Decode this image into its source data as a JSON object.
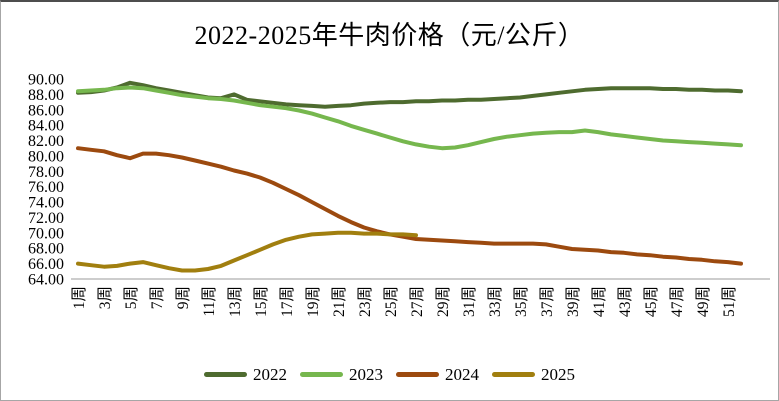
{
  "chart_data": {
    "type": "line",
    "title": "2022-2025年牛肉价格（元/公斤）",
    "xlabel": "",
    "ylabel": "",
    "unit": "元/公斤",
    "ylim": [
      64,
      90
    ],
    "ytick_step": 2,
    "grid": false,
    "legend_position": "bottom",
    "axis_color": "#c6c6c6",
    "text_color": "#000000",
    "weeks_total": 52,
    "y_ticks": [
      "90.00",
      "88.00",
      "86.00",
      "84.00",
      "82.00",
      "80.00",
      "78.00",
      "76.00",
      "74.00",
      "72.00",
      "70.00",
      "68.00",
      "66.00",
      "64.00"
    ],
    "x_tick_labels": [
      "1周",
      "3周",
      "5周",
      "7周",
      "9周",
      "11周",
      "13周",
      "15周",
      "17周",
      "19周",
      "21周",
      "23周",
      "25周",
      "27周",
      "29周",
      "31周",
      "33周",
      "35周",
      "37周",
      "39周",
      "41周",
      "43周",
      "45周",
      "47周",
      "49周",
      "51周"
    ],
    "series": [
      {
        "name": "2022",
        "color": "#4e6b2f",
        "values": [
          88.2,
          88.3,
          88.5,
          88.9,
          89.5,
          89.2,
          88.8,
          88.5,
          88.2,
          87.9,
          87.6,
          87.5,
          88.0,
          87.3,
          87.1,
          86.9,
          86.7,
          86.6,
          86.5,
          86.4,
          86.5,
          86.6,
          86.8,
          86.9,
          87.0,
          87.0,
          87.1,
          87.1,
          87.2,
          87.2,
          87.3,
          87.3,
          87.4,
          87.5,
          87.6,
          87.8,
          88.0,
          88.2,
          88.4,
          88.6,
          88.7,
          88.8,
          88.8,
          88.8,
          88.8,
          88.7,
          88.7,
          88.6,
          88.6,
          88.5,
          88.5,
          88.4
        ]
      },
      {
        "name": "2023",
        "color": "#76b74e",
        "values": [
          88.4,
          88.5,
          88.6,
          88.8,
          88.9,
          88.8,
          88.5,
          88.2,
          87.9,
          87.7,
          87.5,
          87.4,
          87.2,
          86.9,
          86.6,
          86.4,
          86.2,
          85.9,
          85.5,
          85.0,
          84.5,
          83.9,
          83.4,
          82.9,
          82.4,
          81.9,
          81.5,
          81.2,
          81.0,
          81.1,
          81.4,
          81.8,
          82.2,
          82.5,
          82.7,
          82.9,
          83.0,
          83.1,
          83.1,
          83.3,
          83.1,
          82.8,
          82.6,
          82.4,
          82.2,
          82.0,
          81.9,
          81.8,
          81.7,
          81.6,
          81.5,
          81.4
        ]
      },
      {
        "name": "2024",
        "color": "#9c4a0f",
        "values": [
          81.0,
          80.8,
          80.6,
          80.1,
          79.7,
          80.3,
          80.3,
          80.1,
          79.8,
          79.4,
          79.0,
          78.6,
          78.1,
          77.7,
          77.2,
          76.5,
          75.7,
          74.9,
          74.0,
          73.1,
          72.2,
          71.4,
          70.7,
          70.2,
          69.8,
          69.5,
          69.2,
          69.1,
          69.0,
          68.9,
          68.8,
          68.7,
          68.6,
          68.6,
          68.6,
          68.6,
          68.5,
          68.2,
          67.9,
          67.8,
          67.7,
          67.5,
          67.4,
          67.2,
          67.1,
          66.9,
          66.8,
          66.6,
          66.5,
          66.3,
          66.2,
          66.0
        ]
      },
      {
        "name": "2025",
        "color": "#a17f0f",
        "values": [
          66.0,
          65.8,
          65.6,
          65.7,
          66.0,
          66.2,
          65.8,
          65.4,
          65.1,
          65.1,
          65.3,
          65.7,
          66.4,
          67.1,
          67.8,
          68.5,
          69.1,
          69.5,
          69.8,
          69.9,
          70.0,
          70.0,
          69.9,
          69.9,
          69.8,
          69.8,
          69.7
        ]
      }
    ]
  }
}
